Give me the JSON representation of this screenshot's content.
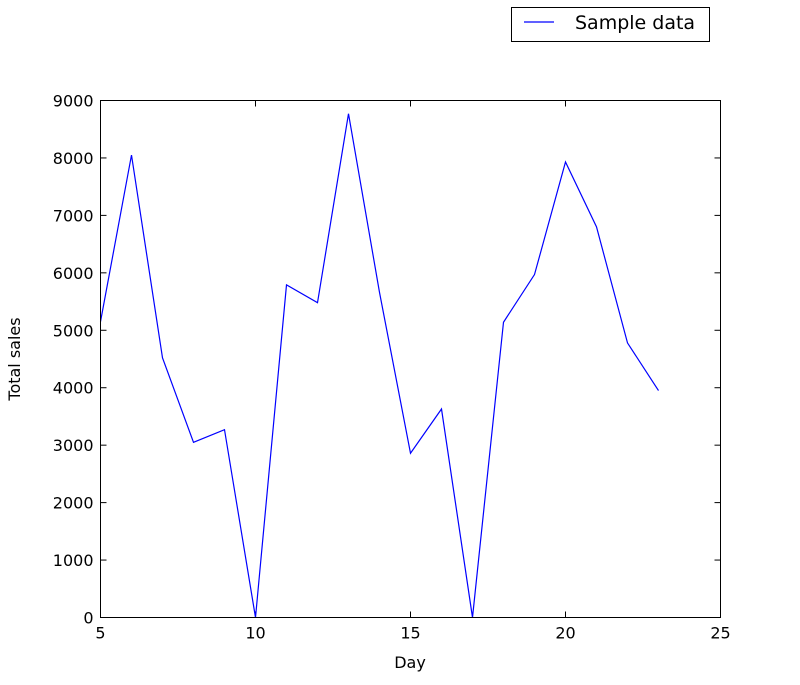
{
  "chart_data": {
    "type": "line",
    "title": "",
    "xlabel": "Day",
    "ylabel": "Total sales",
    "xlim": [
      5,
      25
    ],
    "ylim": [
      0,
      9000
    ],
    "xticks": [
      5,
      10,
      15,
      20,
      25
    ],
    "yticks": [
      0,
      1000,
      2000,
      3000,
      4000,
      5000,
      6000,
      7000,
      8000,
      9000
    ],
    "grid": false,
    "legend_position": "top-right, outside plot",
    "series": [
      {
        "name": "Sample data",
        "color": "#0000ff",
        "x": [
          5,
          6,
          7,
          8,
          9,
          10,
          11,
          12,
          13,
          14,
          15,
          16,
          17,
          18,
          19,
          20,
          21,
          22,
          23
        ],
        "y": [
          5150,
          8050,
          4520,
          3050,
          3270,
          0,
          5790,
          5480,
          8770,
          5660,
          2860,
          3630,
          0,
          5140,
          5970,
          7930,
          6800,
          4780,
          3950
        ]
      }
    ]
  }
}
